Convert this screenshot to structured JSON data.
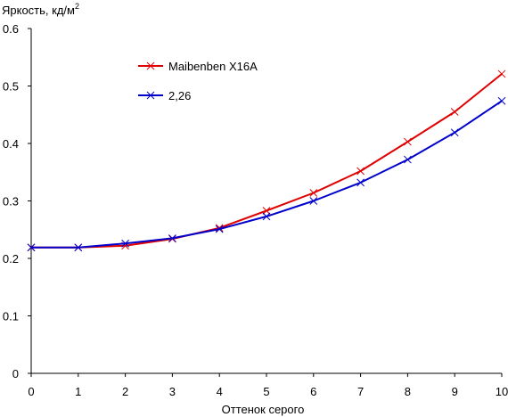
{
  "chart_data": {
    "type": "line",
    "title": "",
    "ylabel": "Яркость, кд/м",
    "ylabel_superscript": "2",
    "xlabel": "Оттенок серого",
    "xlim": [
      0,
      10
    ],
    "ylim": [
      0,
      0.6
    ],
    "x_ticks": [
      "0",
      "1",
      "2",
      "3",
      "4",
      "5",
      "6",
      "7",
      "8",
      "9",
      "10"
    ],
    "y_ticks": [
      "0",
      "0.1",
      "0.2",
      "0.3",
      "0.4",
      "0.5",
      "0.6"
    ],
    "grid": false,
    "legend_placement": "top-center",
    "x": [
      0,
      1,
      2,
      3,
      4,
      5,
      6,
      7,
      8,
      9,
      10
    ],
    "series": [
      {
        "name": "Maibenben X16A",
        "color": "#e00000",
        "marker": "x",
        "values": [
          0.219,
          0.219,
          0.222,
          0.234,
          0.253,
          0.283,
          0.314,
          0.352,
          0.403,
          0.455,
          0.521
        ]
      },
      {
        "name": "2,26",
        "color": "#0000cc",
        "marker": "x",
        "values": [
          0.219,
          0.219,
          0.226,
          0.235,
          0.251,
          0.273,
          0.3,
          0.332,
          0.372,
          0.419,
          0.474
        ]
      }
    ]
  }
}
